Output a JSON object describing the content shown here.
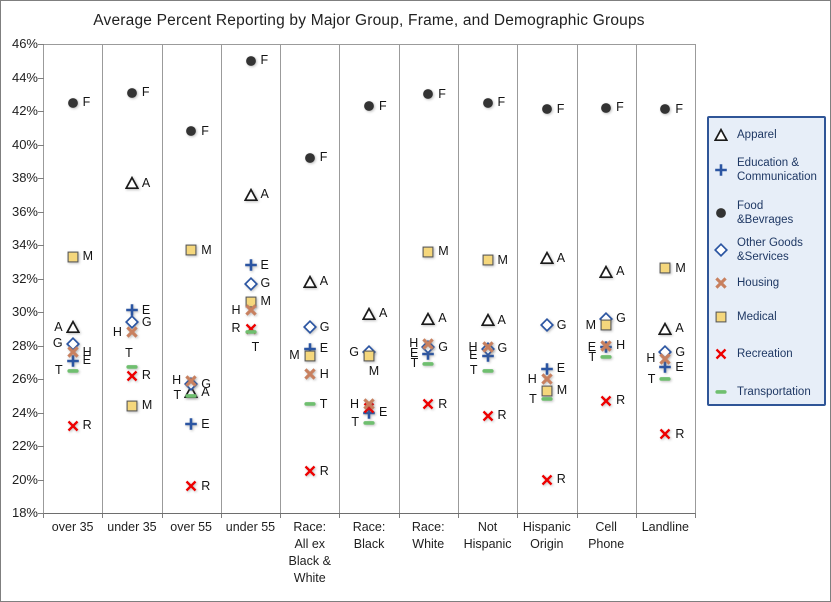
{
  "title": "Average Percent Reporting by Major Group, Frame, and Demographic Groups",
  "y_axis": {
    "max": 46,
    "min": 18,
    "step": 2,
    "tick_labels": [
      "46%",
      "44%",
      "42%",
      "40%",
      "38%",
      "36%",
      "34%",
      "32%",
      "30%",
      "28%",
      "26%",
      "24%",
      "22%",
      "20%",
      "18%"
    ]
  },
  "x_axis": {
    "category_lines": [
      [
        "over 35"
      ],
      [
        "under 35"
      ],
      [
        "over 55"
      ],
      [
        "under 55"
      ],
      [
        "Race:",
        "All ex",
        "Black &",
        "White"
      ],
      [
        "Race:",
        "Black"
      ],
      [
        "Race:",
        "White"
      ],
      [
        "Not",
        "Hispanic"
      ],
      [
        "Hispanic",
        "Origin"
      ],
      [
        "Cell",
        "Phone"
      ],
      [
        "Landline"
      ]
    ]
  },
  "legend_colors": {
    "border": "#2f5597",
    "background": "#e7eef8",
    "text": "#1f3864"
  },
  "chart_data": {
    "type": "scatter",
    "title": "Average Percent Reporting by Major Group, Frame, and Demographic Groups",
    "xlabel": "",
    "ylabel": "",
    "ylim": [
      18,
      46
    ],
    "grid": "vertical-column-separators-only",
    "legend_position": "right",
    "categories": [
      "over 35",
      "under 35",
      "over 55",
      "under 55",
      "Race: All ex Black & White",
      "Race: Black",
      "Race: White",
      "Not Hispanic",
      "Hispanic Origin",
      "Cell Phone",
      "Landline"
    ],
    "series": [
      {
        "key": "apparel",
        "letter": "A",
        "name": "Apparel",
        "legend_lines": [
          "Apparel"
        ],
        "marker": "triangle",
        "color": "#1a1a1a",
        "z": 1,
        "values": [
          29.1,
          37.7,
          25.2,
          37.0,
          31.8,
          29.9,
          29.6,
          29.5,
          33.2,
          32.4,
          29.0
        ],
        "label_sides": [
          "l",
          "r",
          "r",
          "r",
          "r",
          "r",
          "r",
          "r",
          "r",
          "r",
          "r"
        ]
      },
      {
        "key": "education-communication",
        "letter": "E",
        "name": "Education & Communication",
        "legend_lines": [
          "Education &",
          "Communication"
        ],
        "marker": "plus",
        "color": "#2b55a2",
        "z": 2,
        "values": [
          27.1,
          30.1,
          23.3,
          32.8,
          27.8,
          24.0,
          27.5,
          27.4,
          26.6,
          27.9,
          26.7
        ],
        "label_sides": [
          "r",
          "r",
          "r",
          "r",
          "r",
          "r",
          "l",
          "l",
          "r",
          "l",
          "r"
        ]
      },
      {
        "key": "food-bevrages",
        "letter": "F",
        "name": "Food &Bevrages",
        "legend_lines": [
          "Food",
          "&Bevrages"
        ],
        "marker": "circle",
        "color": "#333333",
        "z": 3,
        "values": [
          42.5,
          43.1,
          40.8,
          45.0,
          39.2,
          42.3,
          43.0,
          42.5,
          42.1,
          42.2,
          42.1
        ],
        "label_sides": [
          "r",
          "r",
          "r",
          "r",
          "r",
          "r",
          "r",
          "r",
          "r",
          "r",
          "r"
        ]
      },
      {
        "key": "other-goods-services",
        "letter": "G",
        "name": "Other Goods &Services",
        "legend_lines": [
          "Other Goods",
          "&Services"
        ],
        "marker": "diamond",
        "color": "#2b55a2",
        "z": 4,
        "values": [
          28.1,
          29.4,
          25.7,
          31.7,
          29.1,
          27.6,
          27.9,
          27.8,
          29.2,
          29.6,
          27.6
        ],
        "label_sides": [
          "l",
          "r",
          "r",
          "r",
          "r",
          "l",
          "r",
          "r",
          "r",
          "r",
          "r"
        ]
      },
      {
        "key": "housing",
        "letter": "H",
        "name": "Housing",
        "legend_lines": [
          "Housing"
        ],
        "marker": "x-thick",
        "color": "#c8805f",
        "z": 7,
        "values": [
          27.6,
          28.8,
          25.9,
          30.1,
          26.3,
          24.5,
          28.1,
          27.9,
          26.0,
          28.0,
          27.2
        ],
        "label_sides": [
          "r",
          "l",
          "l",
          "l",
          "r",
          "l",
          "l",
          "l",
          "l",
          "r",
          "l"
        ]
      },
      {
        "key": "medical",
        "letter": "M",
        "name": "Medical",
        "legend_lines": [
          "Medical"
        ],
        "marker": "square",
        "color": "#f5d77c",
        "z": 6,
        "values": [
          33.3,
          24.4,
          33.7,
          30.6,
          27.4,
          27.4,
          33.6,
          33.1,
          25.3,
          29.2,
          32.6
        ],
        "label_sides": [
          "r",
          "r",
          "r",
          "r",
          "l",
          "b",
          "r",
          "r",
          "r",
          "l",
          "r"
        ]
      },
      {
        "key": "recreation",
        "letter": "R",
        "name": "Recreation",
        "legend_lines": [
          "Recreation"
        ],
        "marker": "x",
        "color": "#ee0000",
        "z": 5,
        "values": [
          23.2,
          26.2,
          19.6,
          29.0,
          20.5,
          24.3,
          24.5,
          23.8,
          20.0,
          24.7,
          22.7
        ],
        "label_sides": [
          "r",
          "r",
          "r",
          "l",
          "r",
          "h",
          "r",
          "r",
          "r",
          "r",
          "r"
        ]
      },
      {
        "key": "transportation",
        "letter": "T",
        "name": "Transportation",
        "legend_lines": [
          "Transportation"
        ],
        "marker": "dash",
        "color": "#6fbf6f",
        "z": 8,
        "values": [
          26.5,
          26.7,
          25.0,
          28.8,
          24.5,
          23.4,
          26.9,
          26.5,
          24.8,
          27.3,
          26.0
        ],
        "label_sides": [
          "l",
          "a",
          "l",
          "b",
          "r",
          "l",
          "l",
          "l",
          "l",
          "l",
          "l"
        ]
      }
    ]
  }
}
